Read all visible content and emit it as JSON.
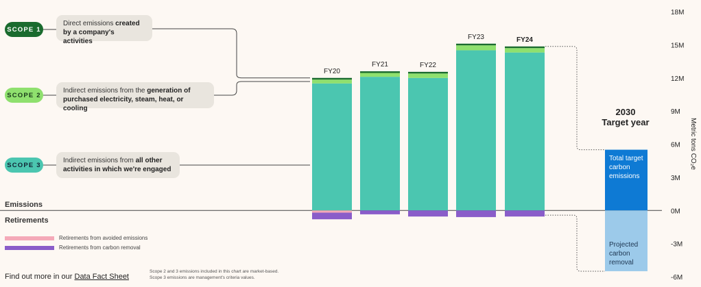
{
  "chart_data": {
    "type": "bar",
    "categories": [
      "FY20",
      "FY21",
      "FY22",
      "FY23",
      "FY24"
    ],
    "series": [
      {
        "values": [
          11.5,
          12.1,
          12.0,
          14.5,
          14.3
        ]
      },
      {
        "values": [
          0.35,
          0.35,
          0.4,
          0.45,
          0.4
        ]
      },
      {
        "values": [
          0.15,
          0.15,
          0.15,
          0.15,
          0.15
        ]
      },
      {
        "name": "Retirements from avoided emissions",
        "values": [
          -0.2,
          0,
          0,
          0,
          0
        ]
      },
      {
        "name": "Retirements from carbon removal",
        "values": [
          -0.6,
          -0.35,
          -0.55,
          -0.6,
          -0.55
        ]
      }
    ],
    "target": {
      "emissions": 5.5,
      "removal": -5.5
    },
    "ylim": [
      -6,
      18
    ],
    "yticks": [
      "18M",
      "15M",
      "12M",
      "9M",
      "6M",
      "3M",
      "0M",
      "-3M",
      "-6M"
    ],
    "ylabel": "Metric tons CO₂e",
    "colors": {
      "scope1": "#1a6b2e",
      "scope2": "#8fe06e",
      "scope3": "#4bc6b0",
      "avoided": "#f4a9b8",
      "removal": "#8a5dc9",
      "target_emissions": "#0e7ad4",
      "target_removal": "#9ccaea"
    }
  },
  "scopes": [
    {
      "pill": "SCOPE 1",
      "text_plain": "Direct emissions ",
      "text_bold": "created by a company's activities"
    },
    {
      "pill": "SCOPE 2",
      "text_plain": "Indirect emissions from the ",
      "text_bold": "generation of purchased electricity, steam, heat, or cooling"
    },
    {
      "pill": "SCOPE 3",
      "text_plain": "Indirect emissions from ",
      "text_bold": "all other activities in which we're engaged"
    }
  ],
  "section_labels": {
    "emissions": "Emissions",
    "retirements": "Retirements"
  },
  "legend": {
    "avoided": "Retirements from avoided emissions",
    "removal": "Retirements from carbon removal"
  },
  "target_block": {
    "title": "2030 Target year",
    "emissions_text": "Total target carbon emissions",
    "removal_text": "Projected carbon removal"
  },
  "footer": {
    "prefix": "Find out more in our ",
    "link": "Data Fact Sheet",
    "note_line1": "Scope 2 and 3 emissions included in this chart are market-based.",
    "note_line2": "Scope 3 emissions are management's criteria values."
  }
}
